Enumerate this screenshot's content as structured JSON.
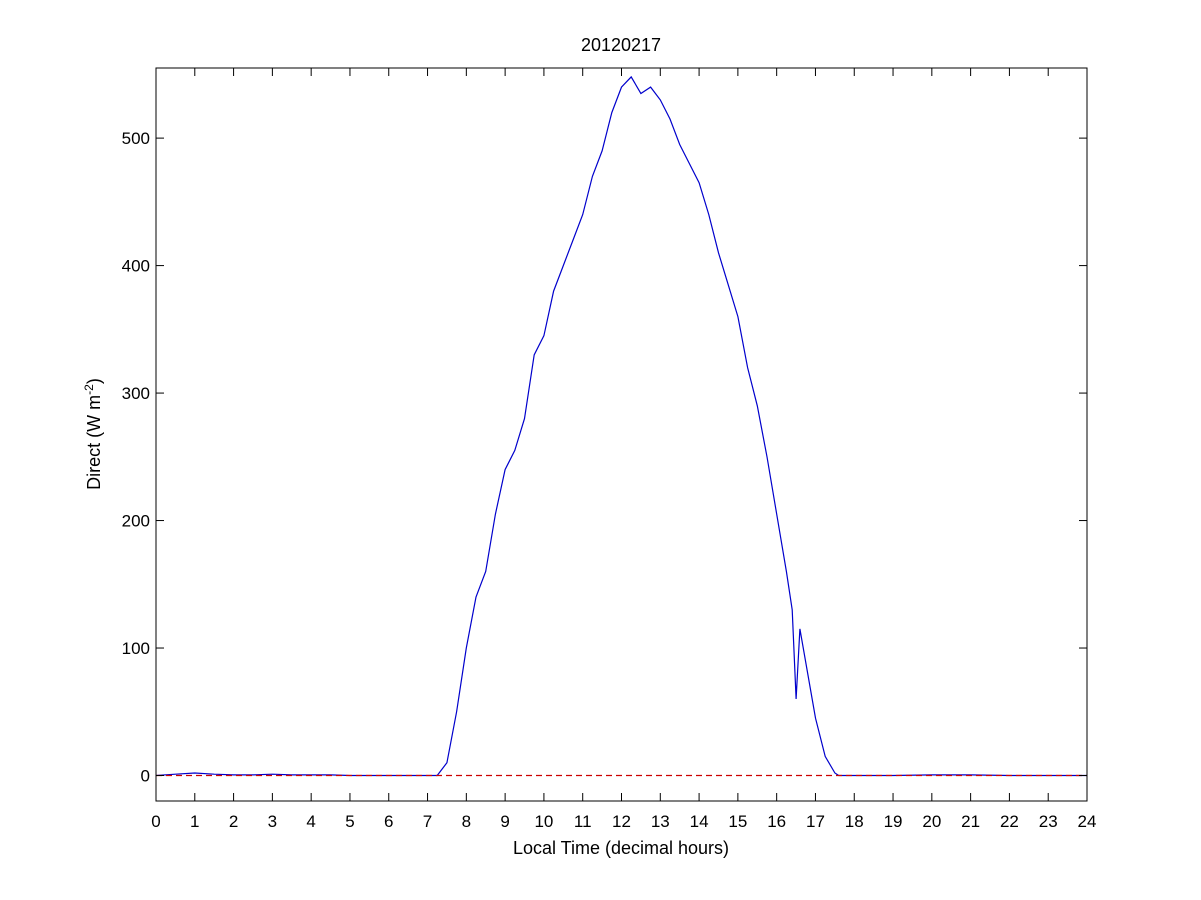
{
  "chart_data": {
    "type": "line",
    "title": "20120217",
    "xlabel": "Local Time (decimal hours)",
    "ylabel": {
      "base": "Direct (W m",
      "sup": "-2",
      "close": ")"
    },
    "xlim": [
      0,
      24
    ],
    "ylim": [
      -20,
      555
    ],
    "xticks": [
      0,
      1,
      2,
      3,
      4,
      5,
      6,
      7,
      8,
      9,
      10,
      11,
      12,
      13,
      14,
      15,
      16,
      17,
      18,
      19,
      20,
      21,
      22,
      23,
      24
    ],
    "yticks": [
      0,
      100,
      200,
      300,
      400,
      500
    ],
    "grid": false,
    "series": [
      {
        "color": "#0000cc",
        "x": [
          0,
          0.5,
          1,
          1.5,
          2,
          2.5,
          3,
          3.5,
          4,
          4.5,
          5,
          5.5,
          6,
          6.5,
          7,
          7.25,
          7.5,
          7.75,
          8,
          8.25,
          8.5,
          8.75,
          9,
          9.25,
          9.5,
          9.75,
          10,
          10.25,
          10.5,
          10.75,
          11,
          11.25,
          11.5,
          11.75,
          12,
          12.25,
          12.5,
          12.75,
          13,
          13.25,
          13.5,
          13.75,
          14,
          14.25,
          14.5,
          14.75,
          15,
          15.25,
          15.5,
          15.75,
          16,
          16.25,
          16.4,
          16.5,
          16.6,
          16.8,
          17,
          17.25,
          17.5,
          17.6,
          18,
          19,
          20,
          21,
          22,
          23,
          24
        ],
        "y": [
          0,
          1,
          2,
          1,
          0.5,
          0.5,
          1,
          0.5,
          0.5,
          0.5,
          0,
          0,
          0,
          0,
          0,
          0,
          10,
          50,
          100,
          140,
          160,
          205,
          240,
          255,
          280,
          330,
          345,
          380,
          400,
          420,
          440,
          470,
          490,
          520,
          540,
          548,
          535,
          540,
          530,
          515,
          495,
          480,
          465,
          440,
          410,
          385,
          360,
          320,
          290,
          250,
          205,
          160,
          130,
          60,
          115,
          80,
          45,
          15,
          2,
          0,
          0,
          0,
          0.5,
          0.5,
          0,
          0,
          0
        ]
      },
      {
        "color": "#cc0000",
        "dashed": true,
        "x": [
          0,
          24
        ],
        "y": [
          0,
          0
        ]
      }
    ]
  }
}
